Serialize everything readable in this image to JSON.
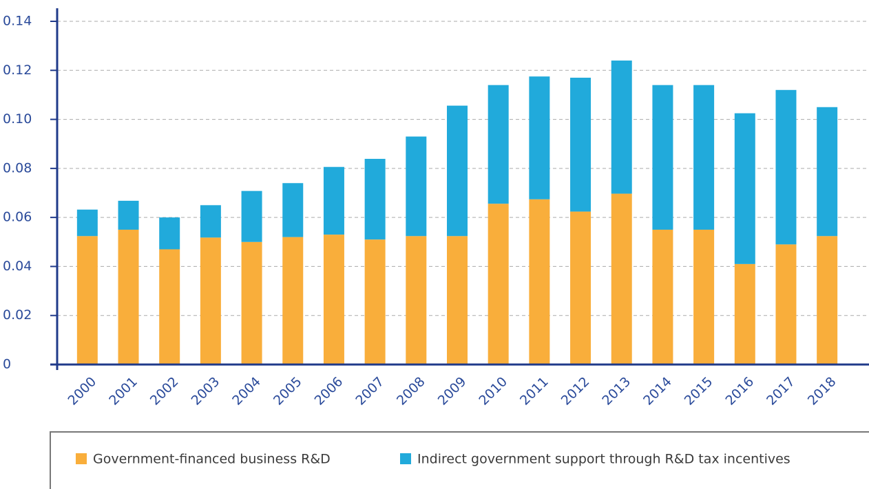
{
  "chart_data": {
    "type": "stacked_bar",
    "categories": [
      "2000",
      "2001",
      "2002",
      "2003",
      "2004",
      "2005",
      "2006",
      "2007",
      "2008",
      "2009",
      "2010",
      "2011",
      "2012",
      "2013",
      "2014",
      "2015",
      "2016",
      "2017",
      "2018"
    ],
    "series": [
      {
        "name": "Government-financed business R&D",
        "color": "#f9ae3b",
        "values": [
          0.0524,
          0.055,
          0.047,
          0.0518,
          0.05,
          0.052,
          0.053,
          0.051,
          0.0524,
          0.0524,
          0.0656,
          0.0674,
          0.0624,
          0.0697,
          0.055,
          0.055,
          0.041,
          0.049,
          0.0524
        ]
      },
      {
        "name": "Indirect government support through R&D tax incentives",
        "color": "#21aadb",
        "values": [
          0.0108,
          0.0118,
          0.013,
          0.0132,
          0.0208,
          0.022,
          0.0276,
          0.0329,
          0.0406,
          0.0532,
          0.0484,
          0.0501,
          0.0546,
          0.0543,
          0.059,
          0.059,
          0.0615,
          0.063,
          0.0526
        ]
      }
    ],
    "ylim": [
      0,
      0.14
    ],
    "yticks": [
      0,
      0.02,
      0.04,
      0.06,
      0.08,
      {
        "value": 0.1,
        "label": "0.10"
      },
      0.12,
      0.14
    ],
    "grid": true
  }
}
